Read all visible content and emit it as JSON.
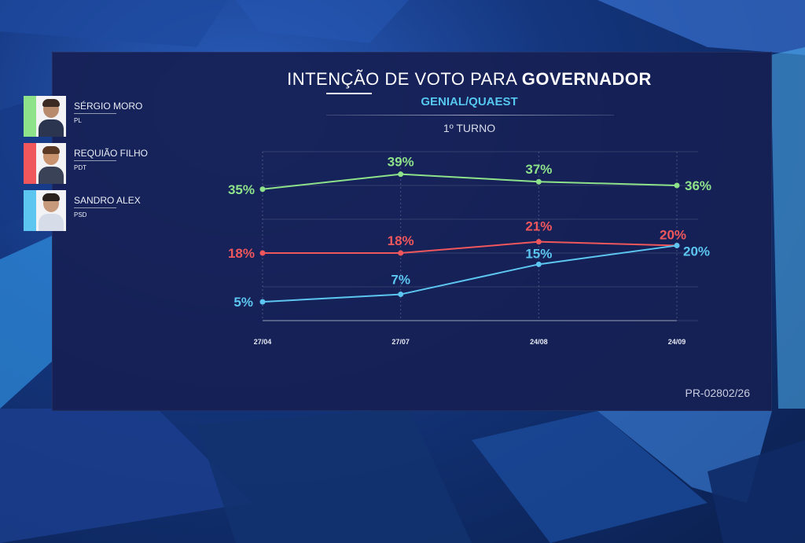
{
  "header": {
    "title_light": "INTENÇÃO DE VOTO PARA ",
    "title_bold": "GOVERNADOR",
    "subtitle": "GENIAL/QUAEST",
    "round": "1º TURNO"
  },
  "footer": {
    "code": "PR-02802/26"
  },
  "colors": {
    "moro": "#8ee28a",
    "requiao": "#f0575c",
    "sandro": "#5cc6f0",
    "panel": "#162054"
  },
  "legend": [
    {
      "name": "SÉRGIO MORO",
      "party": "PL",
      "color": "#8ee28a",
      "photo": "person-photo"
    },
    {
      "name": "REQUIÃO FILHO",
      "party": "PDT",
      "color": "#f0575c",
      "photo": "person-photo"
    },
    {
      "name": "SANDRO ALEX",
      "party": "PSD",
      "color": "#5cc6f0",
      "photo": "person-photo"
    }
  ],
  "chart_data": {
    "type": "line",
    "categories": [
      "27/04",
      "27/07",
      "24/08",
      "24/09"
    ],
    "series": [
      {
        "name": "SÉRGIO MORO",
        "values": [
          35,
          39,
          37,
          36
        ],
        "labels": [
          "35%",
          "39%",
          "37%",
          "36%"
        ],
        "color": "#8ee28a"
      },
      {
        "name": "REQUIÃO FILHO",
        "values": [
          18,
          18,
          21,
          20
        ],
        "labels": [
          "18%",
          "18%",
          "21%",
          "20%"
        ],
        "color": "#f0575c"
      },
      {
        "name": "SANDRO ALEX",
        "values": [
          5,
          7,
          15,
          20
        ],
        "labels": [
          "5%",
          "7%",
          "15%",
          "20%"
        ],
        "color": "#5cc6f0"
      }
    ],
    "title": "INTENÇÃO DE VOTO PARA GOVERNADOR",
    "subtitle": "GENIAL/QUAEST",
    "xlabel": "",
    "ylabel": "",
    "ylim": [
      0,
      45
    ],
    "grid": true,
    "legend_position": "left"
  }
}
